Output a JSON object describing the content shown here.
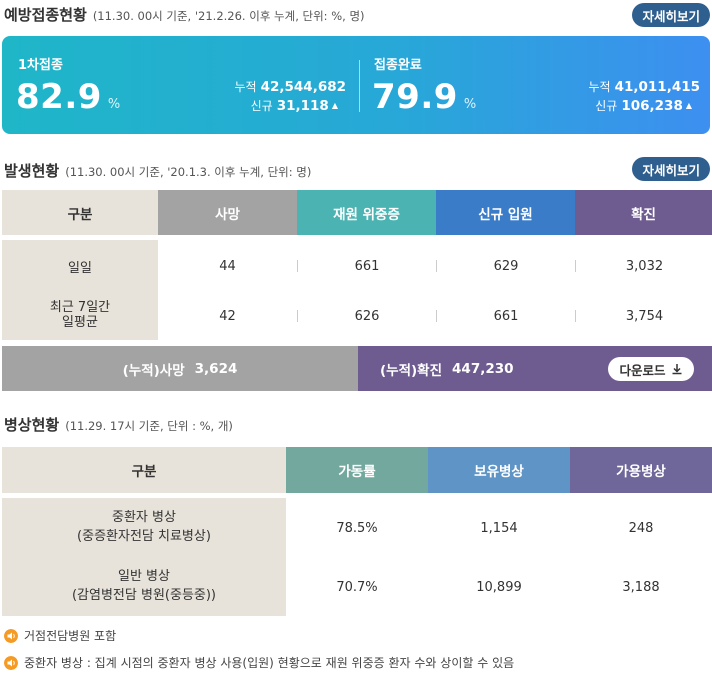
{
  "vaccination": {
    "title": "예방접종현황",
    "subtitle": "(11.30. 00시 기준, '21.2.26. 이후 누계, 단위: %, 명)",
    "detail_label": "자세히보기",
    "first": {
      "label": "1차접종",
      "rate": "82.9",
      "unit": "%",
      "cum_label": "누적",
      "cum_value": "42,544,682",
      "new_label": "신규",
      "new_value": "31,118"
    },
    "complete": {
      "label": "접종완료",
      "rate": "79.9",
      "unit": "%",
      "cum_label": "누적",
      "cum_value": "41,011,415",
      "new_label": "신규",
      "new_value": "106,238"
    }
  },
  "occurrence": {
    "title": "발생현황",
    "subtitle": "(11.30. 00시 기준, '20.1.3. 이후 누계, 단위: 명)",
    "detail_label": "자세히보기",
    "headers": [
      "구분",
      "사망",
      "재원 위중증",
      "신규 입원",
      "확진"
    ],
    "header_colors": [
      "#e8e3da",
      "#a3a3a3",
      "#4bb3b1",
      "#3b7cc9",
      "#6e5b8f"
    ],
    "rows": [
      {
        "label": "일일",
        "values": [
          "44",
          "661",
          "629",
          "3,032"
        ]
      },
      {
        "label": "최근 7일간\n일평균",
        "values": [
          "42",
          "626",
          "661",
          "3,754"
        ]
      }
    ],
    "summary": {
      "death_label": "(누적)사망",
      "death_value": "3,624",
      "confirmed_label": "(누적)확진",
      "confirmed_value": "447,230",
      "download_label": "다운로드"
    }
  },
  "beds": {
    "title": "병상현황",
    "subtitle": "(11.29. 17시 기준, 단위 : %, 개)",
    "headers": [
      "구분",
      "가동률",
      "보유병상",
      "가용병상"
    ],
    "header_colors": [
      "#e8e3da",
      "#72a89e",
      "#5f95c6",
      "#6f679a"
    ],
    "rows": [
      {
        "label": "중환자 병상\n(중증환자전담 치료병상)",
        "values": [
          "78.5%",
          "1,154",
          "248"
        ]
      },
      {
        "label": "일반 병상\n(감염병전담 병원(중등중))",
        "values": [
          "70.7%",
          "10,899",
          "3,188"
        ]
      }
    ]
  },
  "notes": [
    "거점전담병원 포함",
    "중환자 병상 : 집계 시점의 중환자 병상 사용(입원) 현황으로 재원 위중증 환자 수와 상이할 수 있음"
  ],
  "icons": {
    "triangle": "up-triangle-icon",
    "download": "download-icon",
    "speaker": "speaker-icon"
  }
}
